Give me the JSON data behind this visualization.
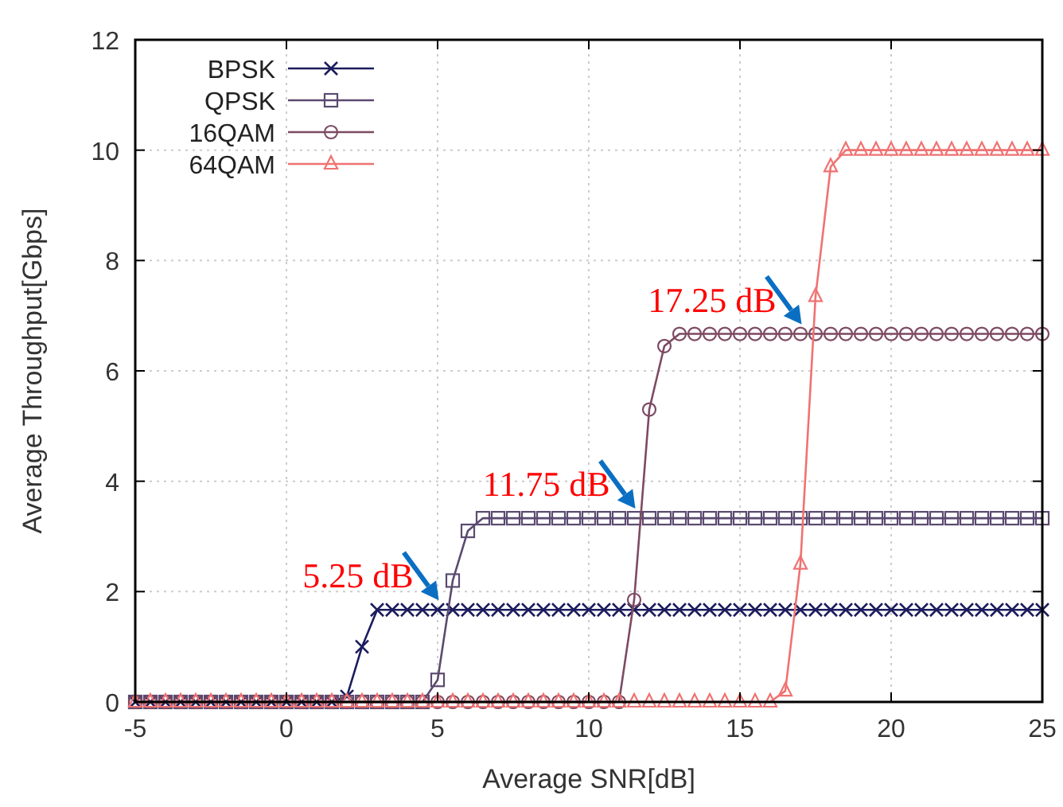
{
  "chart_data": {
    "type": "line",
    "xlabel": "Average SNR[dB]",
    "ylabel": "Average Throughput[Gbps]",
    "x": [
      -5,
      -4.5,
      -4,
      -3.5,
      -3,
      -2.5,
      -2,
      -1.5,
      -1,
      -0.5,
      0,
      0.5,
      1,
      1.5,
      2,
      2.5,
      3,
      3.5,
      4,
      4.5,
      5,
      5.5,
      6,
      6.5,
      7,
      7.5,
      8,
      8.5,
      9,
      9.5,
      10,
      10.5,
      11,
      11.5,
      12,
      12.5,
      13,
      13.5,
      14,
      14.5,
      15,
      15.5,
      16,
      16.5,
      17,
      17.5,
      18,
      18.5,
      19,
      19.5,
      20,
      20.5,
      21,
      21.5,
      22,
      22.5,
      23,
      23.5,
      24,
      24.5,
      25
    ],
    "xlim": [
      -5,
      25
    ],
    "xticks": [
      -5,
      0,
      5,
      10,
      15,
      20,
      25
    ],
    "ylim": [
      0,
      12
    ],
    "yticks": [
      0,
      2,
      4,
      6,
      8,
      10,
      12
    ],
    "grid": true,
    "legend": "top left",
    "series": [
      {
        "name": "BPSK",
        "color": "#1c1c5e",
        "marker": "cross",
        "values": [
          0,
          0,
          0,
          0,
          0,
          0,
          0,
          0,
          0,
          0,
          0,
          0,
          0,
          0,
          0.1,
          1.0,
          1.67,
          1.67,
          1.67,
          1.67,
          1.67,
          1.67,
          1.67,
          1.67,
          1.67,
          1.67,
          1.67,
          1.67,
          1.67,
          1.67,
          1.67,
          1.67,
          1.67,
          1.67,
          1.67,
          1.67,
          1.67,
          1.67,
          1.67,
          1.67,
          1.67,
          1.67,
          1.67,
          1.67,
          1.67,
          1.67,
          1.67,
          1.67,
          1.67,
          1.67,
          1.67,
          1.67,
          1.67,
          1.67,
          1.67,
          1.67,
          1.67,
          1.67,
          1.67,
          1.67,
          1.67
        ]
      },
      {
        "name": "QPSK",
        "color": "#5b4a70",
        "marker": "square",
        "values": [
          0,
          0,
          0,
          0,
          0,
          0,
          0,
          0,
          0,
          0,
          0,
          0,
          0,
          0,
          0,
          0,
          0,
          0,
          0,
          0,
          0.4,
          2.2,
          3.1,
          3.33,
          3.33,
          3.33,
          3.33,
          3.33,
          3.33,
          3.33,
          3.33,
          3.33,
          3.33,
          3.33,
          3.33,
          3.33,
          3.33,
          3.33,
          3.33,
          3.33,
          3.33,
          3.33,
          3.33,
          3.33,
          3.33,
          3.33,
          3.33,
          3.33,
          3.33,
          3.33,
          3.33,
          3.33,
          3.33,
          3.33,
          3.33,
          3.33,
          3.33,
          3.33,
          3.33,
          3.33,
          3.33
        ]
      },
      {
        "name": "16QAM",
        "color": "#7d4a62",
        "marker": "circle",
        "values": [
          0,
          0,
          0,
          0,
          0,
          0,
          0,
          0,
          0,
          0,
          0,
          0,
          0,
          0,
          0,
          0,
          0,
          0,
          0,
          0,
          0,
          0,
          0,
          0,
          0,
          0,
          0,
          0,
          0,
          0,
          0,
          0,
          0,
          1.85,
          5.3,
          6.45,
          6.67,
          6.67,
          6.67,
          6.67,
          6.67,
          6.67,
          6.67,
          6.67,
          6.67,
          6.67,
          6.67,
          6.67,
          6.67,
          6.67,
          6.67,
          6.67,
          6.67,
          6.67,
          6.67,
          6.67,
          6.67,
          6.67,
          6.67,
          6.67,
          6.67
        ]
      },
      {
        "name": "64QAM",
        "color": "#f07272",
        "marker": "triangle",
        "values": [
          0,
          0,
          0,
          0,
          0,
          0,
          0,
          0,
          0,
          0,
          0,
          0,
          0,
          0,
          0,
          0,
          0,
          0,
          0,
          0,
          0,
          0,
          0,
          0,
          0,
          0,
          0,
          0,
          0,
          0,
          0,
          0,
          0,
          0,
          0,
          0,
          0,
          0,
          0,
          0,
          0,
          0,
          0,
          0.2,
          2.5,
          7.35,
          9.7,
          10.0,
          10.0,
          10.0,
          10.0,
          10.0,
          10.0,
          10.0,
          10.0,
          10.0,
          10.0,
          10.0,
          10.0,
          10.0,
          10.0
        ]
      }
    ],
    "annotations": [
      {
        "text": "5.25 dB",
        "x": 5.25,
        "y": 1.67
      },
      {
        "text": "11.75 dB",
        "x": 11.75,
        "y": 3.33
      },
      {
        "text": "17.25 dB",
        "x": 17.25,
        "y": 6.67
      }
    ]
  }
}
